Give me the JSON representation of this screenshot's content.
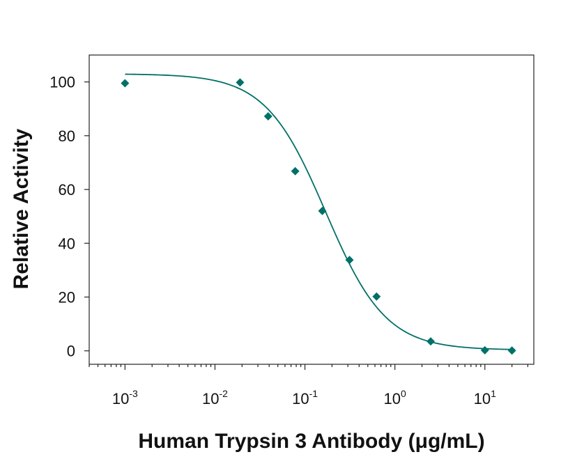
{
  "chart_data": {
    "type": "scatter",
    "xlabel": "Human Trypsin 3 Antibody (μg/mL)",
    "ylabel": "Relative Activity",
    "x_scale": "log",
    "xlim": [
      0.0004,
      35
    ],
    "ylim": [
      -5,
      110
    ],
    "x_ticks": [
      {
        "base": "10",
        "exp": "-3",
        "value": 0.001
      },
      {
        "base": "10",
        "exp": "-2",
        "value": 0.01
      },
      {
        "base": "10",
        "exp": "-1",
        "value": 0.1
      },
      {
        "base": "10",
        "exp": "0",
        "value": 1
      },
      {
        "base": "10",
        "exp": "1",
        "value": 10
      }
    ],
    "y_ticks": [
      "0",
      "20",
      "40",
      "60",
      "80",
      "100"
    ],
    "grid": false,
    "color": "#007068",
    "series": [
      {
        "marker": "diamond",
        "x": [
          0.001,
          0.019,
          0.039,
          0.078,
          0.156,
          0.313,
          0.625,
          2.5,
          10,
          20
        ],
        "y": [
          99.5,
          99.8,
          87.2,
          66.8,
          52.0,
          33.8,
          20.2,
          3.5,
          0.2,
          0.1
        ]
      }
    ],
    "fit_curve": {
      "model": "4PL",
      "top": 103,
      "bottom": 0.3,
      "ec50": 0.17,
      "hill": 1.3
    }
  }
}
